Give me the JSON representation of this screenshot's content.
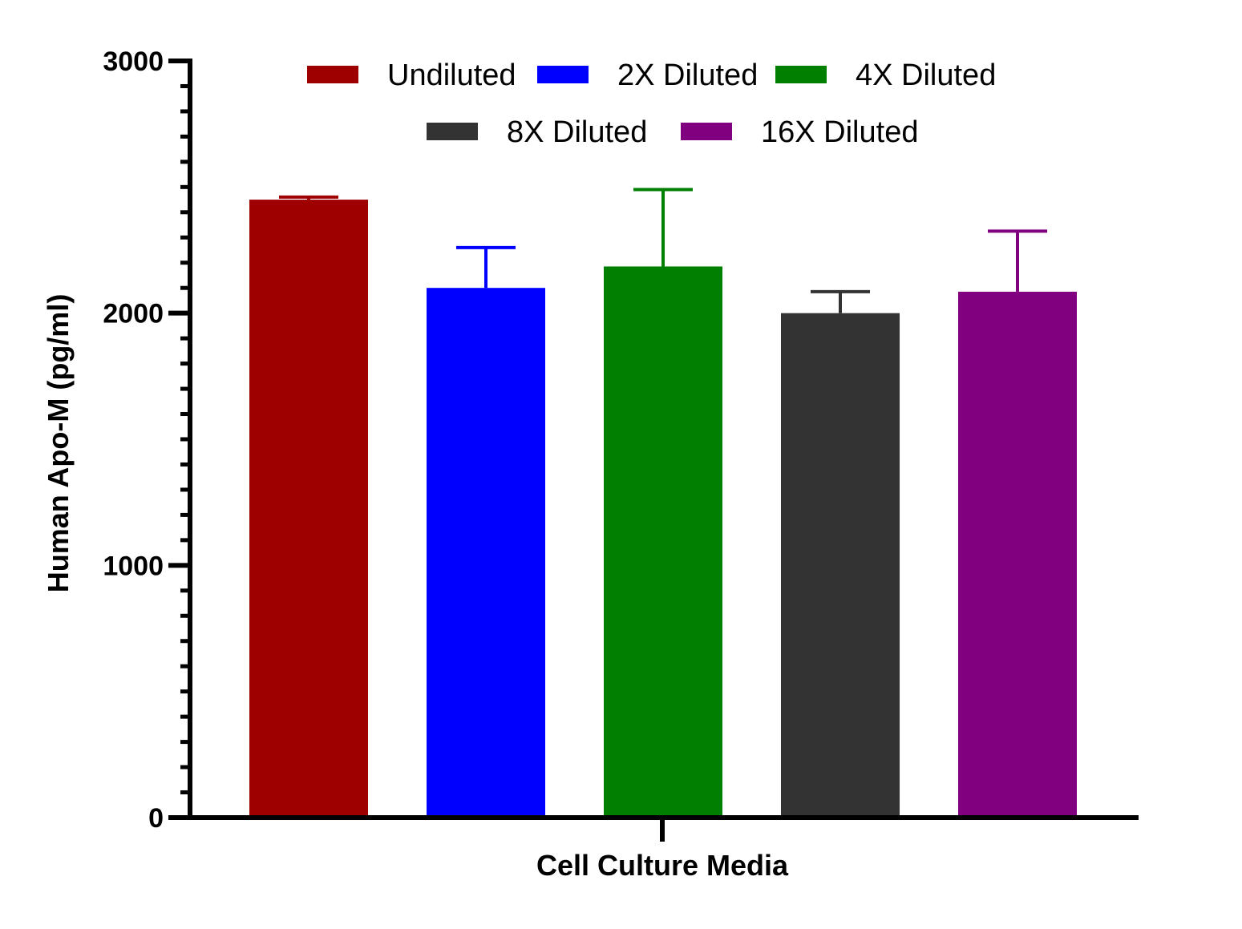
{
  "chart_data": {
    "type": "bar",
    "xlabel": "Cell Culture Media",
    "ylabel": "Human Apo-M (pg/ml)",
    "ylim": [
      0,
      3000
    ],
    "yticks": [
      0,
      1000,
      2000,
      3000
    ],
    "yticks_labels": [
      "0",
      "1000",
      "2000",
      "3000"
    ],
    "minor_ticks_per_major": 10,
    "grid": false,
    "legend_position": "top",
    "categories": [
      "Cell Culture Media"
    ],
    "series": [
      {
        "name": "Undiluted",
        "color": "#9e0000",
        "values": [
          2450
        ],
        "error": [
          10
        ]
      },
      {
        "name": "2X Diluted",
        "color": "#0000ff",
        "values": [
          2100
        ],
        "error": [
          160
        ]
      },
      {
        "name": "4X Diluted",
        "color": "#007f00",
        "values": [
          2185
        ],
        "error": [
          305
        ]
      },
      {
        "name": "8X Diluted",
        "color": "#333333",
        "values": [
          2000
        ],
        "error": [
          85
        ]
      },
      {
        "name": "16X Diluted",
        "color": "#800080",
        "values": [
          2085
        ],
        "error": [
          240
        ]
      }
    ]
  }
}
